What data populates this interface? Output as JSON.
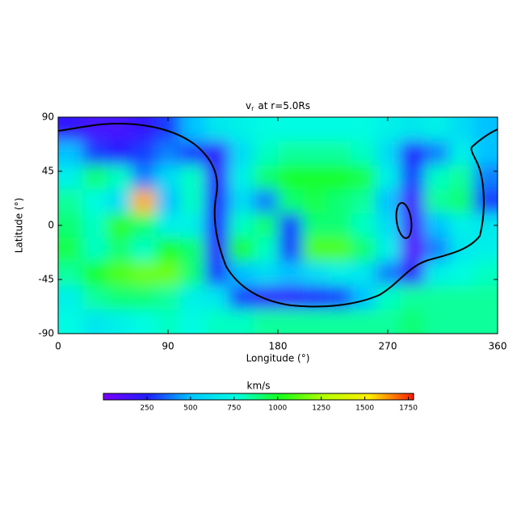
{
  "chart_data": {
    "type": "heatmap",
    "title": "v",
    "title_subscript": "r",
    "title_suffix": "at r=5.0Rs",
    "xlabel": "Longitude (°)",
    "ylabel": "Latitude (°)",
    "xlim": [
      0,
      360
    ],
    "xticks": [
      0,
      90,
      180,
      270,
      360
    ],
    "ylim": [
      -90,
      90
    ],
    "yticks": [
      -90,
      -45,
      0,
      45,
      90
    ],
    "x": [
      10,
      30,
      50,
      70,
      90,
      110,
      130,
      150,
      170,
      190,
      210,
      230,
      250,
      270,
      290,
      310,
      330,
      350
    ],
    "y": [
      80,
      60,
      40,
      20,
      0,
      -20,
      -40,
      -60,
      -80
    ],
    "z": [
      [
        200,
        150,
        150,
        200,
        300,
        500,
        650,
        700,
        750,
        750,
        750,
        750,
        750,
        700,
        650,
        700,
        600,
        500
      ],
      [
        500,
        300,
        250,
        300,
        400,
        300,
        200,
        600,
        800,
        850,
        850,
        850,
        800,
        600,
        250,
        400,
        700,
        500
      ],
      [
        700,
        900,
        800,
        400,
        600,
        800,
        200,
        700,
        900,
        1000,
        1000,
        1000,
        950,
        700,
        300,
        800,
        850,
        400
      ],
      [
        850,
        750,
        600,
        1600,
        500,
        800,
        250,
        600,
        400,
        900,
        950,
        900,
        850,
        500,
        150,
        850,
        900,
        300
      ],
      [
        900,
        800,
        1050,
        900,
        700,
        700,
        250,
        800,
        900,
        300,
        900,
        900,
        800,
        600,
        150,
        500,
        700,
        650
      ],
      [
        950,
        800,
        900,
        800,
        1000,
        900,
        200,
        1000,
        800,
        300,
        1100,
        1100,
        900,
        700,
        100,
        400,
        650,
        700
      ],
      [
        850,
        1000,
        1100,
        1150,
        1150,
        900,
        300,
        500,
        600,
        500,
        600,
        700,
        650,
        400,
        200,
        700,
        750,
        800
      ],
      [
        700,
        850,
        900,
        900,
        850,
        700,
        650,
        300,
        200,
        200,
        250,
        300,
        500,
        800,
        850,
        850,
        850,
        850
      ],
      [
        750,
        650,
        700,
        750,
        800,
        750,
        800,
        800,
        850,
        850,
        850,
        850,
        850,
        850,
        900,
        850,
        850,
        850
      ]
    ],
    "colorbar_label": "km/s",
    "clim": [
      0,
      1780
    ],
    "cticks": [
      250,
      500,
      750,
      1000,
      1250,
      1500,
      1750
    ],
    "colormap": [
      "#7a00ff",
      "#1f1fff",
      "#00c8ff",
      "#00ffe0",
      "#19ff19",
      "#b8ff00",
      "#ffee00",
      "#ff1a00"
    ]
  }
}
